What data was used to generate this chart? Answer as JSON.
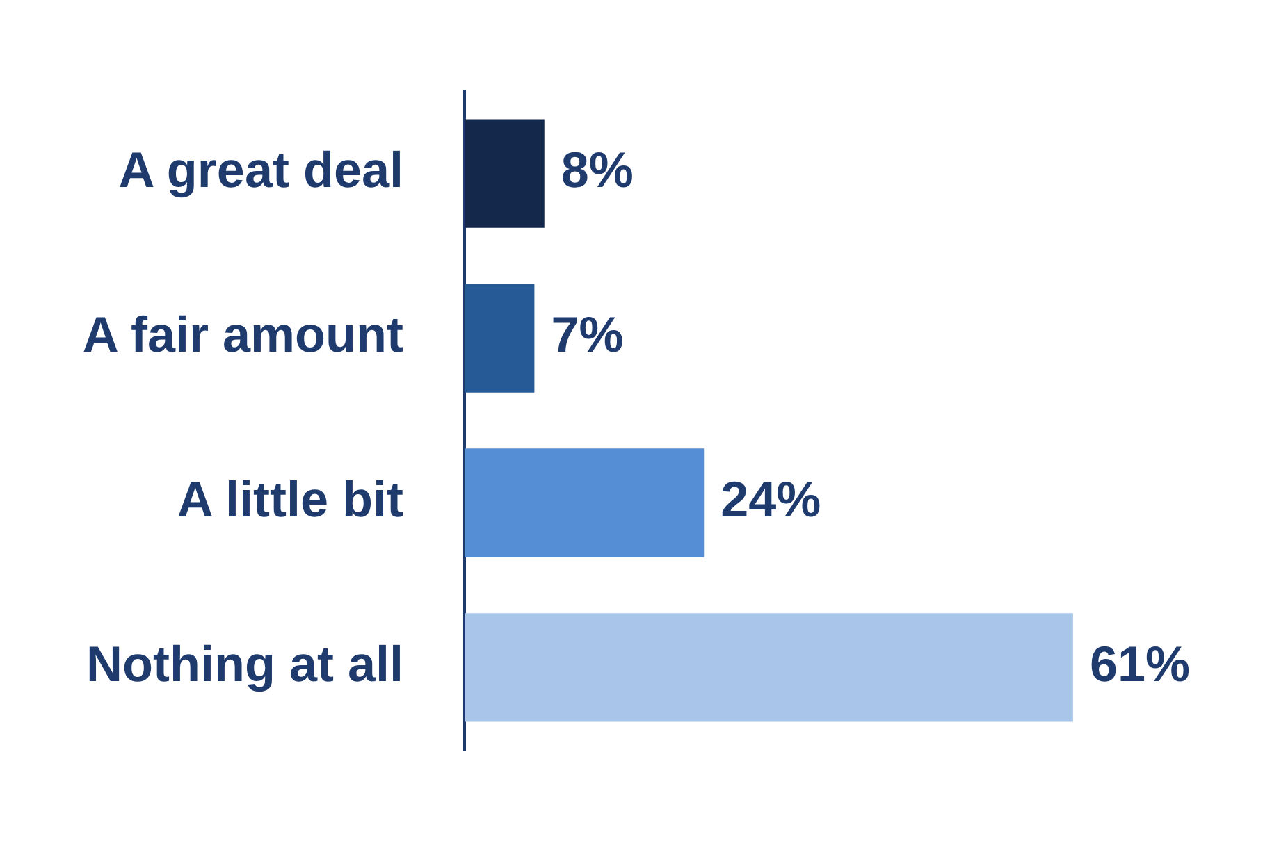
{
  "chart_data": {
    "type": "bar",
    "orientation": "horizontal",
    "categories": [
      "A great deal",
      "A fair amount",
      "A little bit",
      "Nothing at all"
    ],
    "values": [
      8,
      7,
      24,
      61
    ],
    "colors": [
      "#14284b",
      "#265a97",
      "#558ed5",
      "#a9c6ea"
    ],
    "value_labels": [
      "8%",
      "7%",
      "24%",
      "61%"
    ],
    "tick_labels": "y",
    "grid": false,
    "legend": false
  }
}
